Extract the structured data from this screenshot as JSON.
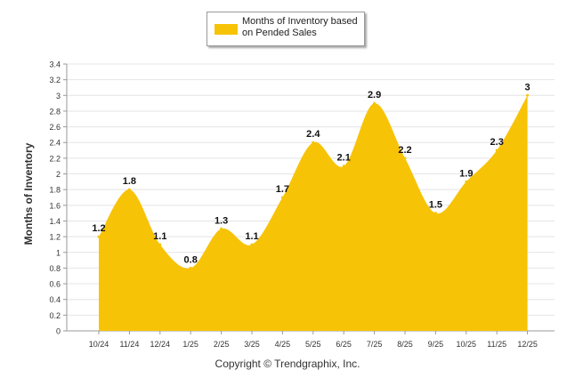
{
  "chart_data": {
    "type": "area",
    "categories": [
      "10/24",
      "11/24",
      "12/24",
      "1/25",
      "2/25",
      "3/25",
      "4/25",
      "5/25",
      "6/25",
      "7/25",
      "8/25",
      "9/25",
      "10/25",
      "11/25",
      "12/25"
    ],
    "series": [
      {
        "name": "Months of Inventory based on Pended Sales",
        "values": [
          1.2,
          1.8,
          1.1,
          0.8,
          1.3,
          1.1,
          1.7,
          2.4,
          2.1,
          2.9,
          2.2,
          1.5,
          1.9,
          2.3,
          3
        ]
      }
    ],
    "data_labels": [
      "1.2",
      "1.8",
      "1.1",
      "0.8",
      "1.3",
      "1.1",
      "1.7",
      "2.4",
      "2.1",
      "2.9",
      "2.2",
      "1.5",
      "1.9",
      "2.3",
      "3"
    ],
    "ylabel": "Months of Inventory",
    "xlabel": "",
    "ylim": [
      0,
      3.4
    ],
    "yticks": [
      "0",
      "0.2",
      "0.4",
      "0.6",
      "0.8",
      "1",
      "1.2",
      "1.4",
      "1.6",
      "1.8",
      "2",
      "2.2",
      "2.4",
      "2.6",
      "2.8",
      "3",
      "3.2",
      "3.4"
    ],
    "grid": true,
    "legend_position": "top-center",
    "fill_color": "#f7c307",
    "footer": "Copyright © Trendgraphix, Inc."
  },
  "legend": {
    "label": "Months of Inventory based on Pended Sales"
  },
  "footer_text": "Copyright © Trendgraphix, Inc."
}
